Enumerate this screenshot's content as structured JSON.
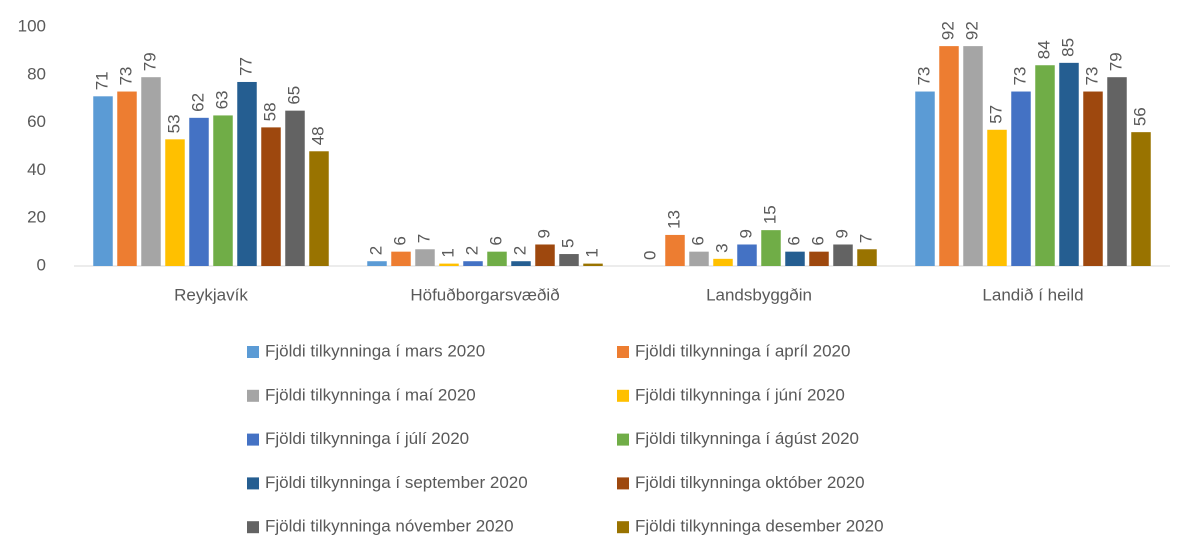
{
  "chart_data": {
    "type": "bar",
    "categories": [
      "Reykjavík",
      "Höfuðborgarsvæðið",
      "Landsbyggðin",
      "Landið í heild"
    ],
    "series": [
      {
        "name": "Fjöldi tilkynninga í mars 2020",
        "color": "#5b9bd5",
        "values": [
          71,
          2,
          0,
          73
        ]
      },
      {
        "name": "Fjöldi tilkynninga í apríl 2020",
        "color": "#ed7d31",
        "values": [
          73,
          6,
          13,
          92
        ]
      },
      {
        "name": "Fjöldi tilkynninga í maí 2020",
        "color": "#a5a5a5",
        "values": [
          79,
          7,
          6,
          92
        ]
      },
      {
        "name": "Fjöldi tilkynninga í júní 2020",
        "color": "#ffc000",
        "values": [
          53,
          1,
          3,
          57
        ]
      },
      {
        "name": "Fjöldi tilkynninga í júlí 2020",
        "color": "#4472c4",
        "values": [
          62,
          2,
          9,
          73
        ]
      },
      {
        "name": "Fjöldi tilkynninga í ágúst 2020",
        "color": "#70ad47",
        "values": [
          63,
          6,
          15,
          84
        ]
      },
      {
        "name": "Fjöldi tilkynninga í september 2020",
        "color": "#255e91",
        "values": [
          77,
          2,
          6,
          85
        ]
      },
      {
        "name": "Fjöldi tilkynninga október 2020",
        "color": "#9e480e",
        "values": [
          58,
          9,
          6,
          73
        ]
      },
      {
        "name": "Fjöldi tilkynninga nóvember 2020",
        "color": "#636363",
        "values": [
          65,
          5,
          9,
          79
        ]
      },
      {
        "name": "Fjöldi tilkynninga desember 2020",
        "color": "#997300",
        "values": [
          48,
          1,
          7,
          56
        ]
      }
    ],
    "ylim": [
      0,
      100
    ],
    "yticks": [
      0,
      20,
      40,
      60,
      80,
      100
    ],
    "grid": false,
    "legend": "bottom"
  }
}
